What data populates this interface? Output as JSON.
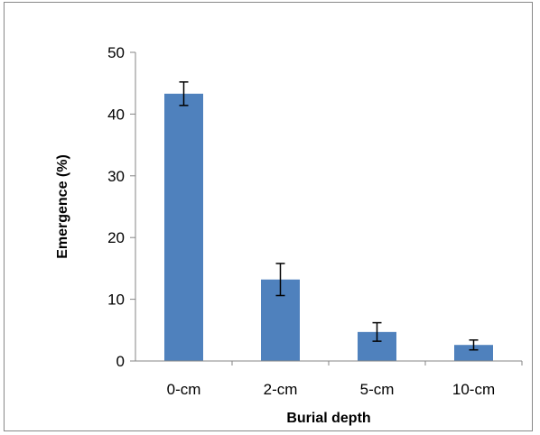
{
  "chart_data": {
    "type": "bar",
    "title": "",
    "xlabel": "Burial depth",
    "ylabel": "Emergence (%)",
    "categories": [
      "0-cm",
      "2-cm",
      "5-cm",
      "10-cm"
    ],
    "values": [
      43.3,
      13.2,
      4.7,
      2.6
    ],
    "error": [
      1.9,
      2.6,
      1.5,
      0.8
    ],
    "ylim": [
      0,
      50
    ],
    "yticks": [
      0,
      10,
      20,
      30,
      40,
      50
    ],
    "bar_color": "#4f81bd",
    "error_bar_color": "#000000",
    "grid": false,
    "legend": "none"
  }
}
